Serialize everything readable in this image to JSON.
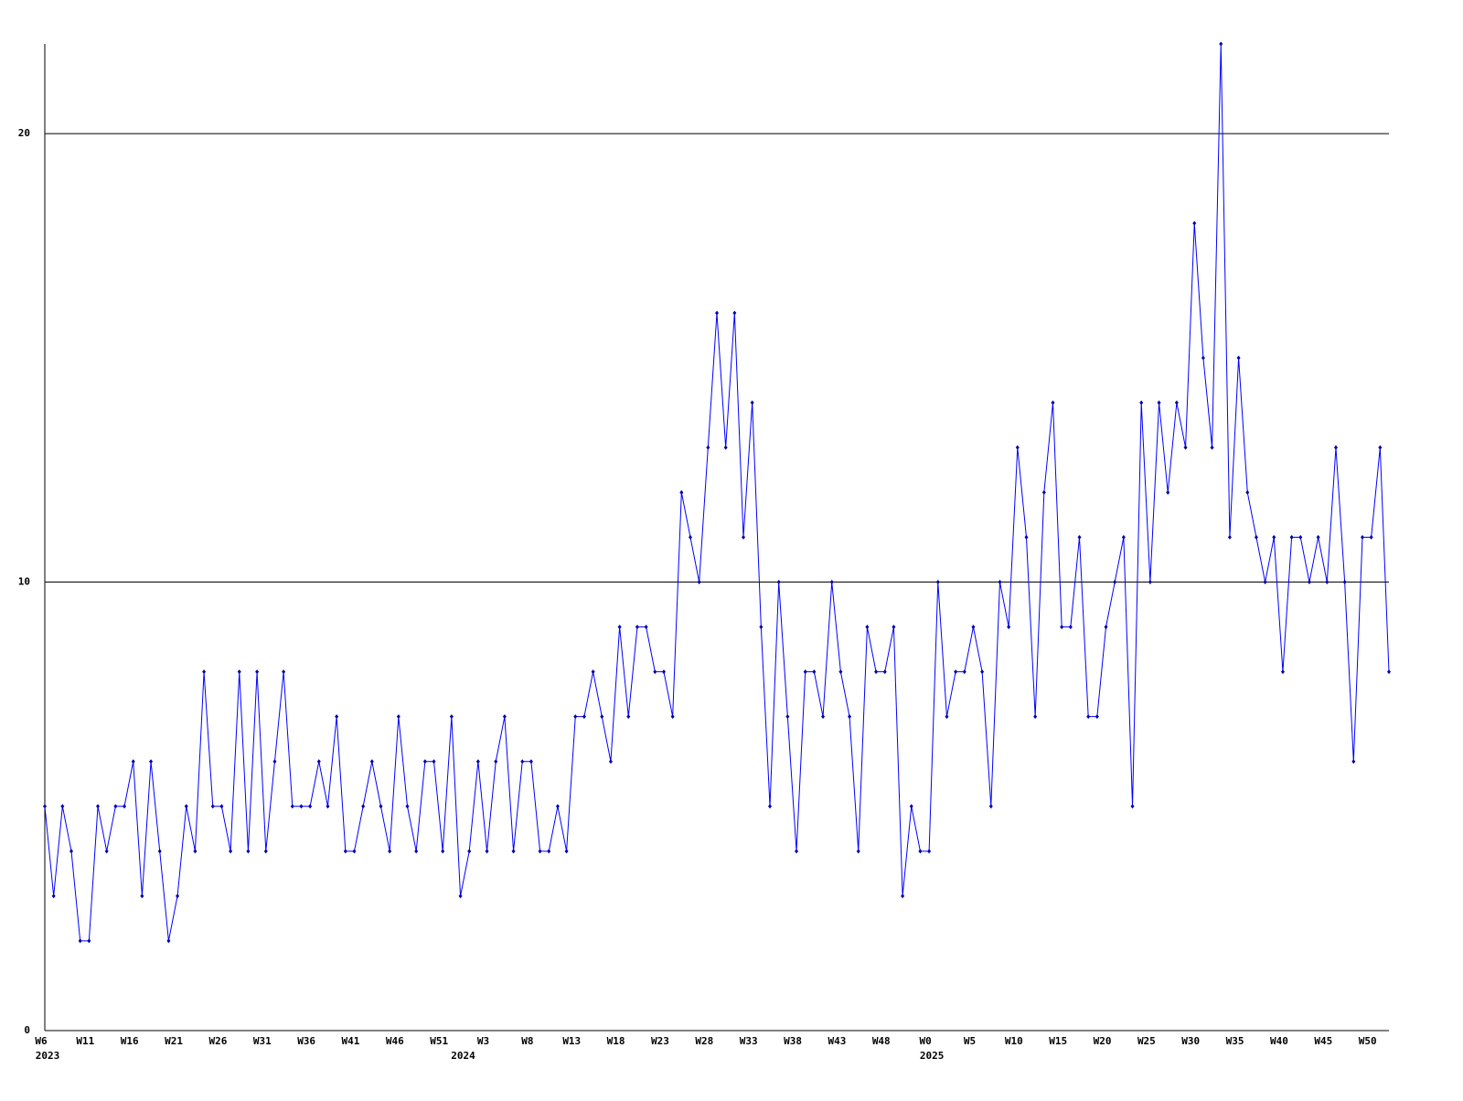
{
  "chart_data": {
    "type": "line",
    "categories": [
      "W6",
      null,
      null,
      null,
      null,
      "W11",
      null,
      null,
      null,
      null,
      "W16",
      null,
      null,
      null,
      null,
      "W21",
      null,
      null,
      null,
      null,
      "W26",
      null,
      null,
      null,
      null,
      "W31",
      null,
      null,
      null,
      null,
      "W36",
      null,
      null,
      null,
      null,
      "W41",
      null,
      null,
      null,
      null,
      "W46",
      null,
      null,
      null,
      null,
      "W51",
      null,
      null,
      null,
      null,
      "W3",
      null,
      null,
      null,
      null,
      "W8",
      null,
      null,
      null,
      null,
      "W13",
      null,
      null,
      null,
      null,
      "W18",
      null,
      null,
      null,
      null,
      "W23",
      null,
      null,
      null,
      null,
      "W28",
      null,
      null,
      null,
      null,
      "W33",
      null,
      null,
      null,
      null,
      "W38",
      null,
      null,
      null,
      null,
      "W43",
      null,
      null,
      null,
      null,
      "W48",
      null,
      null,
      null,
      null,
      "W0",
      null,
      null,
      null,
      null,
      "W5",
      null,
      null,
      null,
      null,
      "W10",
      null,
      null,
      null,
      null,
      "W15",
      null,
      null,
      null,
      null,
      "W20",
      null,
      null,
      null,
      null,
      "W25",
      null,
      null,
      null,
      null,
      "W30",
      null,
      null,
      null,
      null,
      "W35",
      null,
      null,
      null,
      null,
      "W40",
      null,
      null,
      null,
      null,
      "W45",
      null,
      null,
      null,
      null,
      "W50",
      null,
      null
    ],
    "category_years": [
      "2023",
      null,
      null,
      null,
      null,
      null,
      null,
      null,
      null,
      null,
      null,
      null,
      null,
      null,
      null,
      null,
      null,
      null,
      null,
      null,
      null,
      null,
      null,
      null,
      null,
      null,
      null,
      null,
      null,
      null,
      null,
      null,
      null,
      null,
      null,
      null,
      null,
      null,
      null,
      null,
      null,
      null,
      null,
      null,
      null,
      null,
      null,
      "2024",
      null,
      null,
      null,
      null,
      null,
      null,
      null,
      null,
      null,
      null,
      null,
      null,
      null,
      null,
      null,
      null,
      null,
      null,
      null,
      null,
      null,
      null,
      null,
      null,
      null,
      null,
      null,
      null,
      null,
      null,
      null,
      null,
      null,
      null,
      null,
      null,
      null,
      null,
      null,
      null,
      null,
      null,
      null,
      null,
      null,
      null,
      null,
      null,
      null,
      null,
      null,
      null,
      "2025",
      null,
      null,
      null,
      null,
      null,
      null,
      null,
      null,
      null,
      null,
      null,
      null,
      null,
      null,
      null,
      null,
      null,
      null,
      null,
      null,
      null,
      null,
      null,
      null,
      null,
      null,
      null,
      null,
      null,
      null,
      null,
      null,
      null,
      null,
      null,
      null,
      null,
      null,
      null,
      null,
      null,
      null,
      null,
      null,
      null,
      null,
      null,
      null,
      null,
      null,
      null,
      null
    ],
    "series": [
      {
        "color": "#0000ff",
        "marker_color": "#0000aa",
        "values": [
          5,
          3,
          5,
          4,
          2,
          2,
          5,
          4,
          5,
          5,
          6,
          3,
          6,
          4,
          2,
          3,
          5,
          4,
          8,
          5,
          5,
          4,
          8,
          4,
          8,
          4,
          6,
          8,
          5,
          5,
          5,
          6,
          5,
          7,
          4,
          4,
          5,
          6,
          5,
          4,
          7,
          5,
          4,
          6,
          6,
          4,
          7,
          3,
          4,
          6,
          4,
          6,
          7,
          4,
          6,
          6,
          4,
          4,
          5,
          4,
          7,
          7,
          8,
          7,
          6,
          9,
          7,
          9,
          9,
          8,
          8,
          7,
          12,
          11,
          10,
          13,
          16,
          13,
          16,
          11,
          14,
          9,
          5,
          10,
          7,
          4,
          8,
          8,
          7,
          10,
          8,
          7,
          4,
          9,
          8,
          8,
          9,
          3,
          5,
          4,
          4,
          10,
          7,
          8,
          8,
          9,
          8,
          5,
          10,
          9,
          13,
          11,
          7,
          12,
          14,
          9,
          9,
          11,
          7,
          7,
          9,
          10,
          11,
          5,
          14,
          10,
          14,
          12,
          14,
          13,
          18,
          15,
          13,
          22,
          11,
          15,
          12,
          11,
          10,
          11,
          8,
          11,
          11,
          10,
          11,
          10,
          13,
          10,
          6,
          11,
          11,
          13,
          8
        ]
      }
    ],
    "ylim": [
      0,
      22
    ],
    "yticks": [
      0,
      10,
      20
    ],
    "grid": true
  }
}
